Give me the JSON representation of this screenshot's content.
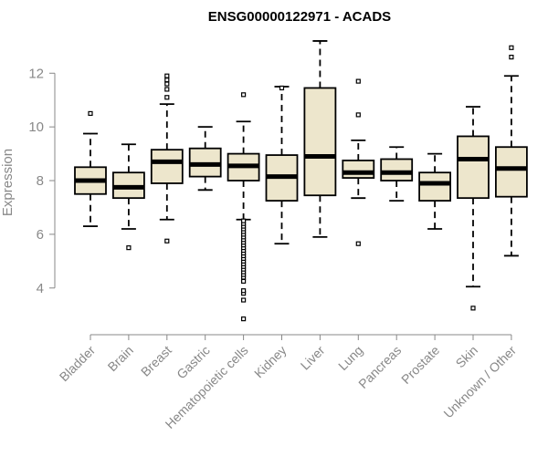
{
  "chart_data": {
    "type": "boxplot",
    "title": "ENSG00000122971 - ACADS",
    "xlabel": "",
    "ylabel": "Expression",
    "ylim": [
      2.6,
      13.3
    ],
    "yticks": [
      4,
      6,
      8,
      10,
      12
    ],
    "box_fill": "#ede6cc",
    "categories": [
      "Bladder",
      "Brain",
      "Breast",
      "Gastric",
      "Hematopoietic cells",
      "Kidney",
      "Liver",
      "Lung",
      "Pancreas",
      "Prostate",
      "Skin",
      "Unknown / Other"
    ],
    "boxes": [
      {
        "name": "Bladder",
        "whisker_low": 6.3,
        "q1": 7.5,
        "median": 8.0,
        "q3": 8.5,
        "whisker_high": 9.75,
        "outliers": [
          10.5
        ]
      },
      {
        "name": "Brain",
        "whisker_low": 6.2,
        "q1": 7.35,
        "median": 7.75,
        "q3": 8.3,
        "whisker_high": 9.35,
        "outliers": [
          5.5
        ]
      },
      {
        "name": "Breast",
        "whisker_low": 6.55,
        "q1": 7.9,
        "median": 8.7,
        "q3": 9.15,
        "whisker_high": 10.85,
        "outliers": [
          5.75,
          11.1,
          11.4,
          11.6,
          11.75,
          11.9
        ]
      },
      {
        "name": "Gastric",
        "whisker_low": 7.65,
        "q1": 8.15,
        "median": 8.6,
        "q3": 9.2,
        "whisker_high": 10.0,
        "outliers": []
      },
      {
        "name": "Hematopoietic cells",
        "whisker_low": 6.55,
        "q1": 8.0,
        "median": 8.55,
        "q3": 9.0,
        "whisker_high": 10.2,
        "outliers": [
          11.2,
          2.85,
          3.55,
          3.8,
          3.9,
          4.25,
          4.4,
          4.5,
          4.6,
          4.7,
          4.8,
          4.9,
          5.0,
          5.1,
          5.2,
          5.3,
          5.4,
          5.5,
          5.6,
          5.7,
          5.8,
          5.9,
          6.0,
          6.1,
          6.2,
          6.3,
          6.4,
          6.5
        ]
      },
      {
        "name": "Kidney",
        "whisker_low": 5.65,
        "q1": 7.25,
        "median": 8.15,
        "q3": 8.95,
        "whisker_high": 11.5,
        "outliers": [
          11.45
        ]
      },
      {
        "name": "Liver",
        "whisker_low": 5.9,
        "q1": 7.45,
        "median": 8.9,
        "q3": 11.45,
        "whisker_high": 13.2,
        "outliers": []
      },
      {
        "name": "Lung",
        "whisker_low": 7.35,
        "q1": 8.1,
        "median": 8.3,
        "q3": 8.75,
        "whisker_high": 9.5,
        "outliers": [
          5.65,
          10.45,
          11.7
        ]
      },
      {
        "name": "Pancreas",
        "whisker_low": 7.25,
        "q1": 8.0,
        "median": 8.3,
        "q3": 8.8,
        "whisker_high": 9.25,
        "outliers": []
      },
      {
        "name": "Prostate",
        "whisker_low": 6.2,
        "q1": 7.25,
        "median": 7.9,
        "q3": 8.3,
        "whisker_high": 9.0,
        "outliers": []
      },
      {
        "name": "Skin",
        "whisker_low": 4.05,
        "q1": 7.35,
        "median": 8.8,
        "q3": 9.65,
        "whisker_high": 10.75,
        "outliers": [
          3.25
        ]
      },
      {
        "name": "Unknown / Other",
        "whisker_low": 5.2,
        "q1": 7.4,
        "median": 8.45,
        "q3": 9.25,
        "whisker_high": 11.9,
        "outliers": [
          12.6,
          12.95
        ]
      }
    ]
  }
}
